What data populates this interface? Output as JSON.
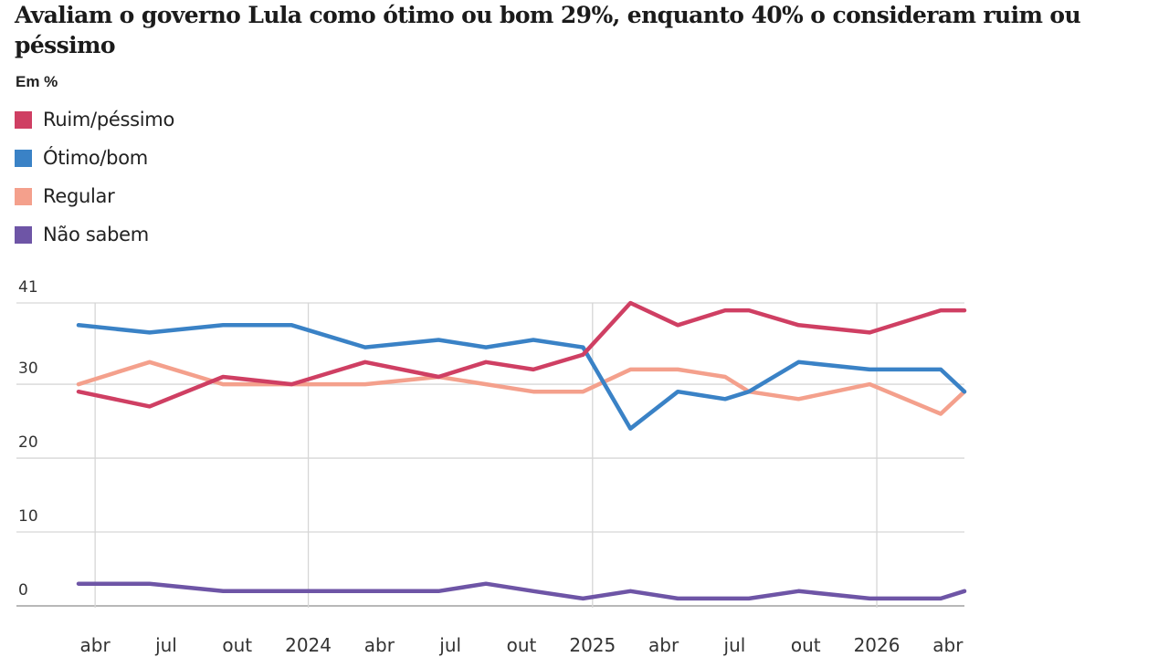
{
  "chart_data": {
    "type": "line",
    "title": "Avaliam o governo Lula como ótimo ou bom 29%, enquanto 40% o consideram ruim ou péssimo",
    "subtitle": "Em %",
    "xlabel": "",
    "ylabel": "",
    "ylim": [
      0,
      41
    ],
    "y_ticks": [
      0,
      10,
      20,
      30,
      41
    ],
    "grid": true,
    "legend_position": "top-left",
    "x": [
      "2023-03",
      "2023-06",
      "2023-09",
      "2023-12",
      "2024-03",
      "2024-06",
      "2024-08",
      "2024-10",
      "2024-12",
      "2025-02",
      "2025-04",
      "2025-06",
      "2025-07",
      "2025-09",
      "2025-12",
      "2026-03",
      "2026-04"
    ],
    "x_months": [
      2.3,
      5.3,
      8.4,
      11.3,
      14.4,
      17.5,
      19.5,
      21.5,
      23.6,
      25.6,
      27.6,
      29.6,
      30.6,
      32.7,
      35.7,
      38.7,
      39.7
    ],
    "x_ticks": [
      {
        "label": "abr",
        "month": 3
      },
      {
        "label": "jul",
        "month": 6
      },
      {
        "label": "out",
        "month": 9
      },
      {
        "label": "2024",
        "month": 12
      },
      {
        "label": "abr",
        "month": 15
      },
      {
        "label": "jul",
        "month": 18
      },
      {
        "label": "out",
        "month": 21
      },
      {
        "label": "2025",
        "month": 24
      },
      {
        "label": "abr",
        "month": 27
      },
      {
        "label": "jul",
        "month": 30
      },
      {
        "label": "out",
        "month": 33
      },
      {
        "label": "2026",
        "month": 36
      },
      {
        "label": "abr",
        "month": 39
      }
    ],
    "x_gridlines_months": [
      3,
      12,
      24,
      36
    ],
    "series": [
      {
        "name": "Ruim/péssimo",
        "color": "#cf3f63",
        "values": [
          29,
          27,
          31,
          30,
          33,
          31,
          33,
          32,
          34,
          41,
          38,
          40,
          40,
          38,
          37,
          40,
          40
        ]
      },
      {
        "name": "Ótimo/bom",
        "color": "#3a82c6",
        "values": [
          38,
          37,
          38,
          38,
          35,
          36,
          35,
          36,
          35,
          24,
          29,
          28,
          29,
          33,
          32,
          32,
          29
        ]
      },
      {
        "name": "Regular",
        "color": "#f4a08c",
        "values": [
          30,
          33,
          30,
          30,
          30,
          31,
          30,
          29,
          29,
          32,
          32,
          31,
          29,
          28,
          30,
          26,
          29
        ]
      },
      {
        "name": "Não sabem",
        "color": "#6e55a6",
        "values": [
          3,
          3,
          2,
          2,
          2,
          2,
          3,
          2,
          1,
          2,
          1,
          1,
          1,
          2,
          1,
          1,
          2
        ]
      }
    ]
  }
}
